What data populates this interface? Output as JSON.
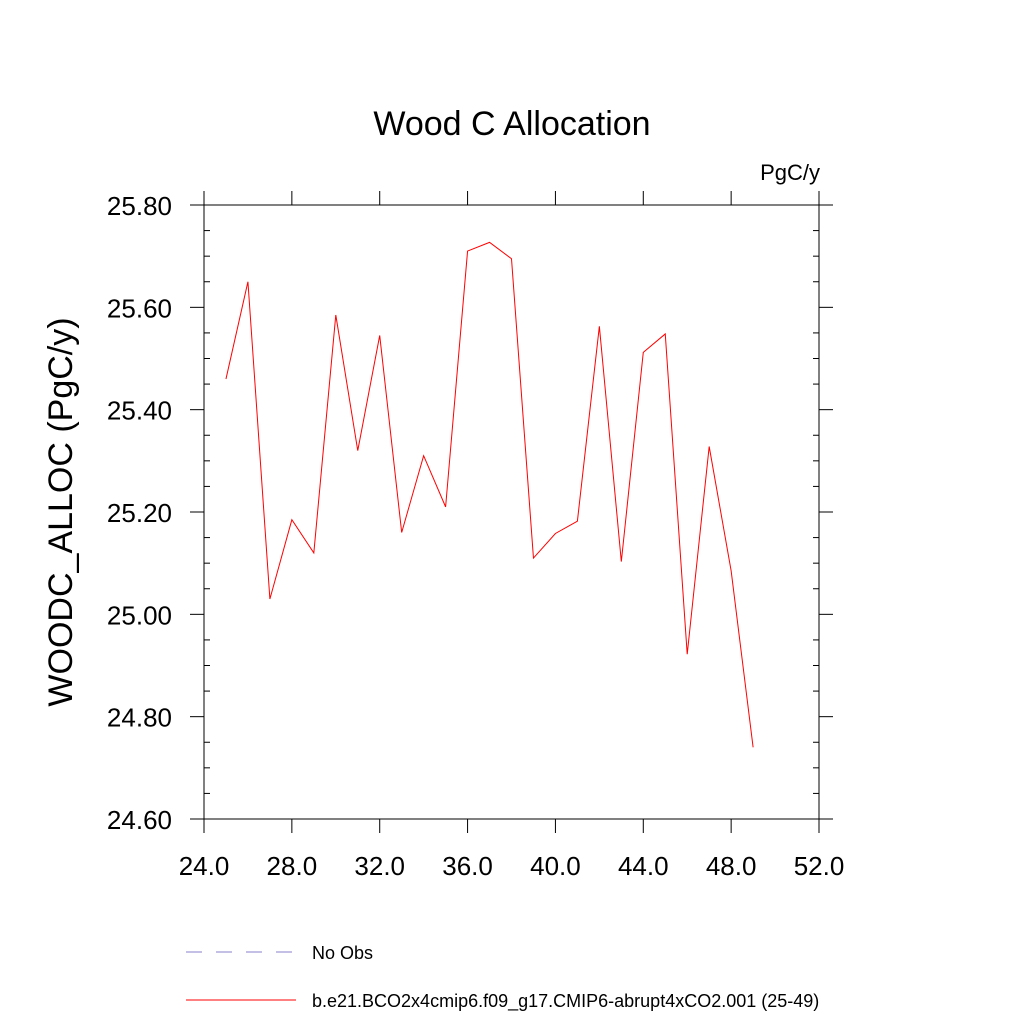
{
  "chart_data": {
    "type": "line",
    "title": "Wood C Allocation",
    "units_label": "PgC/y",
    "xlabel": "",
    "ylabel": "WOODC_ALLOC  (PgC/y)",
    "xlim": [
      24,
      52
    ],
    "ylim": [
      24.6,
      25.8
    ],
    "x_ticks": [
      24,
      28,
      32,
      36,
      40,
      44,
      48,
      52
    ],
    "x_tick_labels": [
      "24.0",
      "28.0",
      "32.0",
      "36.0",
      "40.0",
      "44.0",
      "48.0",
      "52.0"
    ],
    "y_ticks": [
      24.6,
      24.8,
      25.0,
      25.2,
      25.4,
      25.6,
      25.8
    ],
    "y_tick_labels": [
      "24.60",
      "24.80",
      "25.00",
      "25.20",
      "25.40",
      "25.60",
      "25.80"
    ],
    "series": [
      {
        "name": "b.e21.BCO2x4cmip6.f09_g17.CMIP6-abrupt4xCO2.001 (25-49)",
        "color": "#ff0000",
        "x": [
          25,
          26,
          27,
          28,
          29,
          30,
          31,
          32,
          33,
          34,
          35,
          36,
          37,
          38,
          39,
          40,
          41,
          42,
          43,
          44,
          45,
          46,
          47,
          48,
          49
        ],
        "y": [
          25.46,
          25.65,
          25.03,
          25.185,
          25.12,
          25.585,
          25.32,
          25.545,
          25.16,
          25.31,
          25.21,
          25.71,
          25.727,
          25.695,
          25.11,
          25.158,
          25.182,
          25.563,
          25.103,
          25.512,
          25.548,
          24.922,
          25.328,
          25.085,
          24.74
        ]
      }
    ],
    "legend": [
      {
        "label": "No Obs",
        "style": "dashed",
        "color": "#8a7fc8"
      },
      {
        "label": "b.e21.BCO2x4cmip6.f09_g17.CMIP6-abrupt4xCO2.001 (25-49)",
        "style": "solid",
        "color": "#ff0000"
      }
    ]
  }
}
